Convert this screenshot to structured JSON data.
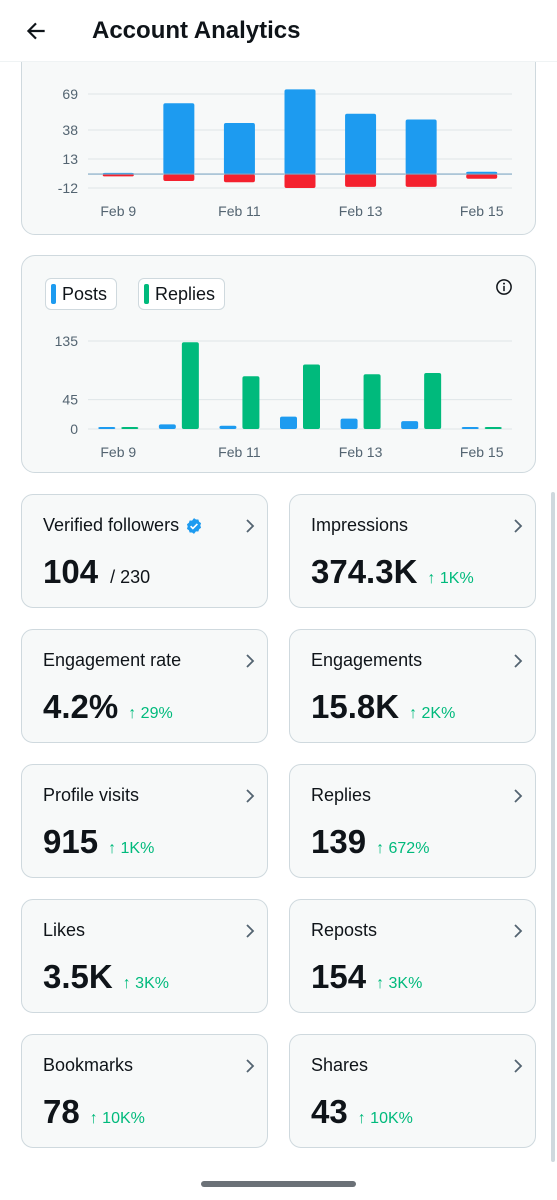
{
  "header": {
    "title": "Account Analytics"
  },
  "chart_data": [
    {
      "type": "bar",
      "categories": [
        "Feb 9",
        "Feb 10",
        "Feb 11",
        "Feb 12",
        "Feb 13",
        "Feb 14",
        "Feb 15"
      ],
      "series": [
        {
          "color": "#1d9bf0",
          "values": [
            1,
            61,
            44,
            73,
            52,
            47,
            2
          ]
        },
        {
          "color": "#f4212e",
          "values": [
            -2,
            -6,
            -7,
            -12,
            -11,
            -11,
            -4
          ]
        }
      ],
      "ytick_labels": [
        "69",
        "38",
        "13",
        "-12"
      ],
      "yticks": [
        69,
        38,
        13,
        -12
      ],
      "xtick_labels": [
        "Feb 9",
        "Feb 11",
        "Feb 13",
        "Feb 15"
      ],
      "xtick_indices": [
        0,
        2,
        4,
        6
      ],
      "ylim": [
        -12,
        69
      ],
      "grid": true,
      "title": "",
      "xlabel": "",
      "ylabel": ""
    },
    {
      "type": "bar",
      "categories": [
        "Feb 9",
        "Feb 10",
        "Feb 11",
        "Feb 12",
        "Feb 13",
        "Feb 14",
        "Feb 15"
      ],
      "series": [
        {
          "name": "Posts",
          "color": "#1d9bf0",
          "values": [
            1,
            7,
            5,
            19,
            16,
            12,
            1
          ]
        },
        {
          "name": "Replies",
          "color": "#00ba7c",
          "values": [
            1,
            133,
            81,
            99,
            84,
            86,
            3
          ]
        }
      ],
      "ytick_labels": [
        "135",
        "45",
        "0"
      ],
      "yticks": [
        135,
        45,
        0
      ],
      "xtick_labels": [
        "Feb 9",
        "Feb 11",
        "Feb 13",
        "Feb 15"
      ],
      "xtick_indices": [
        0,
        2,
        4,
        6
      ],
      "ylim": [
        0,
        135
      ],
      "grid": true,
      "legend": "top-left",
      "title": "",
      "xlabel": "",
      "ylabel": ""
    }
  ],
  "legend": {
    "posts_label": "Posts",
    "replies_label": "Replies",
    "posts_color": "#1d9bf0",
    "replies_color": "#00ba7c"
  },
  "stats": {
    "verified_followers": {
      "label": "Verified followers",
      "value": "104",
      "total": "/ 230"
    },
    "impressions": {
      "label": "Impressions",
      "value": "374.3K",
      "delta": "↑ 1K%"
    },
    "engagement_rate": {
      "label": "Engagement rate",
      "value": "4.2%",
      "delta": "↑ 29%"
    },
    "engagements": {
      "label": "Engagements",
      "value": "15.8K",
      "delta": "↑ 2K%"
    },
    "profile_visits": {
      "label": "Profile visits",
      "value": "915",
      "delta": "↑ 1K%"
    },
    "replies": {
      "label": "Replies",
      "value": "139",
      "delta": "↑ 672%"
    },
    "likes": {
      "label": "Likes",
      "value": "3.5K",
      "delta": "↑ 3K%"
    },
    "reposts": {
      "label": "Reposts",
      "value": "154",
      "delta": "↑ 3K%"
    },
    "bookmarks": {
      "label": "Bookmarks",
      "value": "78",
      "delta": "↑ 10K%"
    },
    "shares": {
      "label": "Shares",
      "value": "43",
      "delta": "↑ 10K%"
    }
  },
  "colors": {
    "positive": "#00ba7c",
    "verified": "#1d9bf0"
  }
}
